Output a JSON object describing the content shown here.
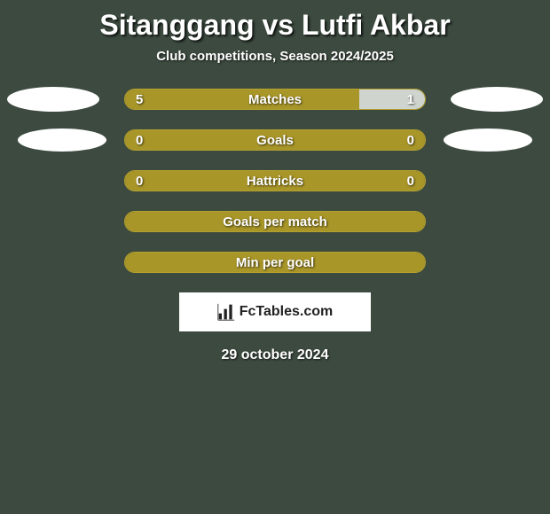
{
  "title": "Sitanggang vs Lutfi Akbar",
  "subtitle": "Club competitions, Season 2024/2025",
  "date": "29 october 2024",
  "colors": {
    "left": "#a99629",
    "right": "#a99629",
    "neutral": "#a99629",
    "border": "#b4a12e",
    "background": "#3c4a3f",
    "text": "#ffffff",
    "logo_bg": "#ffffff",
    "logo_fg": "#222222"
  },
  "logo_text": "FcTables.com",
  "rows": [
    {
      "label": "Matches",
      "left_value": "5",
      "right_value": "1",
      "left_pct": 78,
      "right_pct": 22,
      "left_color": "#a99629",
      "right_color": "#cfd5ce",
      "show_ellipses": "big"
    },
    {
      "label": "Goals",
      "left_value": "0",
      "right_value": "0",
      "left_pct": 50,
      "right_pct": 50,
      "left_color": "#a99629",
      "right_color": "#a99629",
      "show_ellipses": "small"
    },
    {
      "label": "Hattricks",
      "left_value": "0",
      "right_value": "0",
      "left_pct": 50,
      "right_pct": 50,
      "left_color": "#a99629",
      "right_color": "#a99629",
      "show_ellipses": "none"
    },
    {
      "label": "Goals per match",
      "left_value": "",
      "right_value": "",
      "left_pct": 100,
      "right_pct": 0,
      "left_color": "#a99629",
      "right_color": "#a99629",
      "show_ellipses": "none"
    },
    {
      "label": "Min per goal",
      "left_value": "",
      "right_value": "",
      "left_pct": 100,
      "right_pct": 0,
      "left_color": "#a99629",
      "right_color": "#a99629",
      "show_ellipses": "none"
    }
  ]
}
